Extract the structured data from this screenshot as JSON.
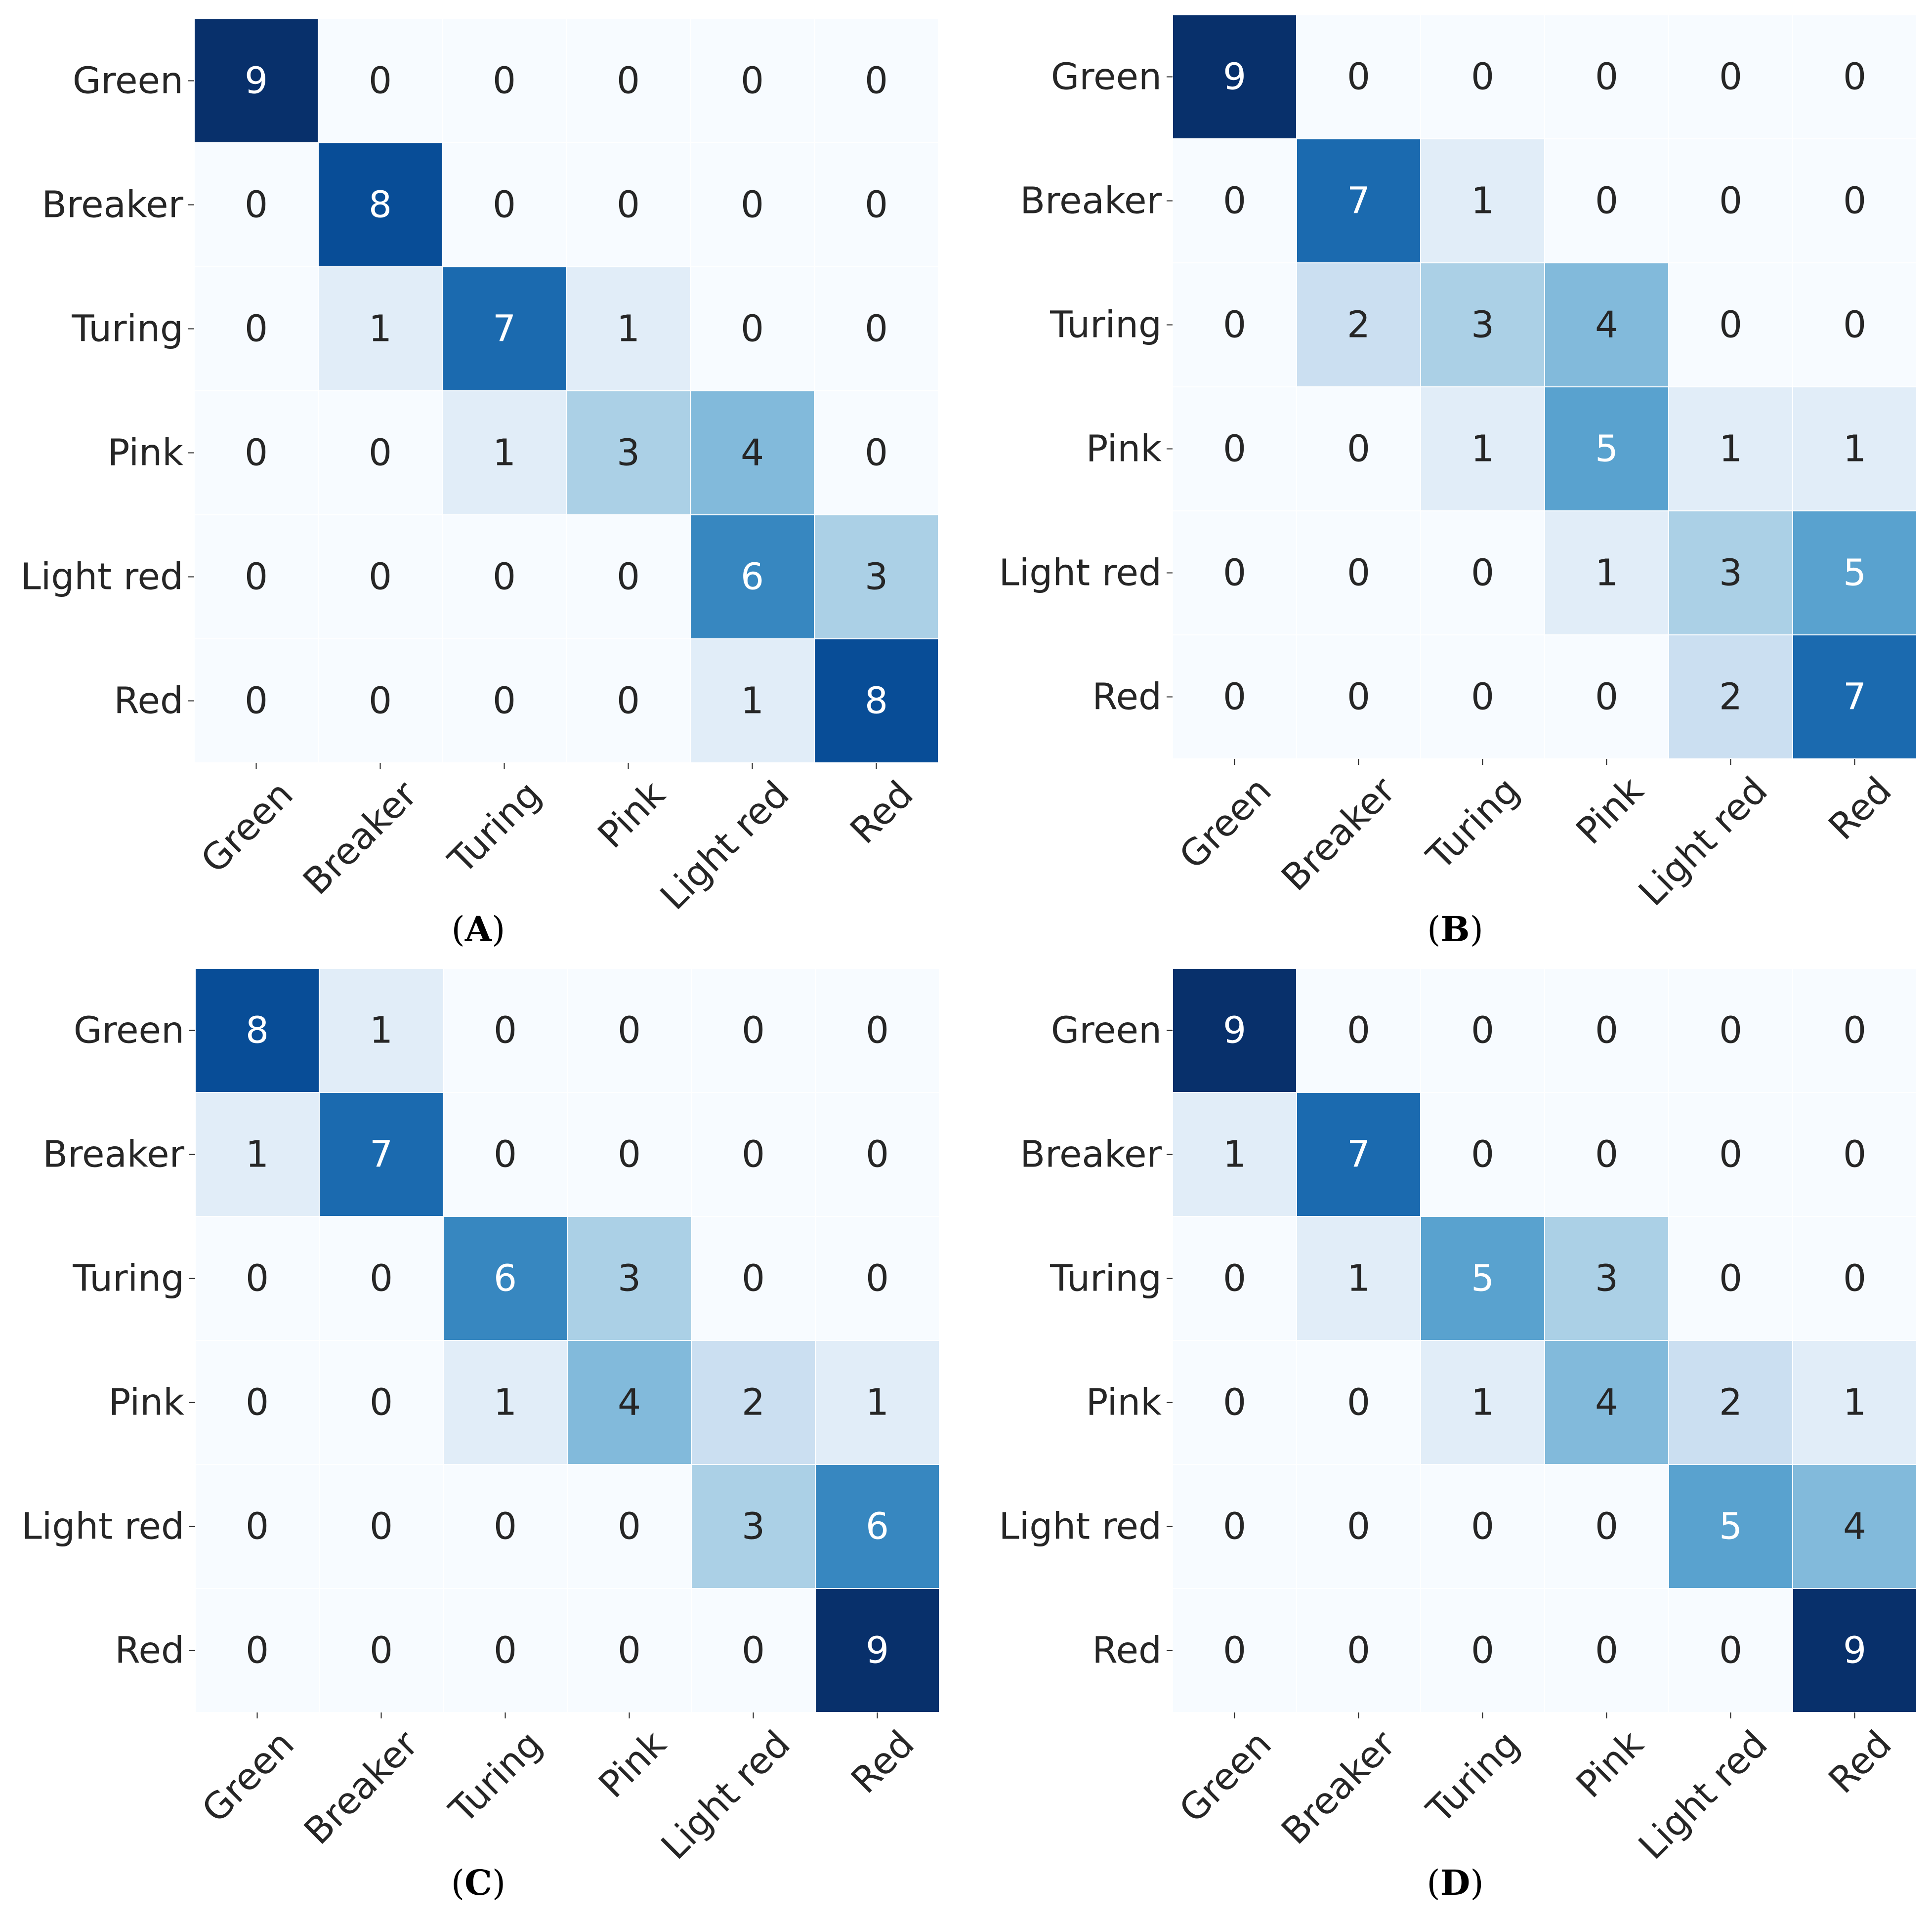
{
  "chart_data": [
    {
      "type": "heatmap",
      "panel": "A",
      "caption_letter": "A",
      "row_labels": [
        "Green",
        "Breaker",
        "Turing",
        "Pink",
        "Light red",
        "Red"
      ],
      "col_labels": [
        "Green",
        "Breaker",
        "Turing",
        "Pink",
        "Light red",
        "Red"
      ],
      "matrix": [
        [
          9,
          0,
          0,
          0,
          0,
          0
        ],
        [
          0,
          8,
          0,
          0,
          0,
          0
        ],
        [
          0,
          1,
          7,
          1,
          0,
          0
        ],
        [
          0,
          0,
          1,
          3,
          4,
          0
        ],
        [
          0,
          0,
          0,
          0,
          6,
          3
        ],
        [
          0,
          0,
          0,
          0,
          1,
          8
        ]
      ],
      "value_range": [
        0,
        9
      ],
      "colormap": "Blues"
    },
    {
      "type": "heatmap",
      "panel": "B",
      "caption_letter": "B",
      "row_labels": [
        "Green",
        "Breaker",
        "Turing",
        "Pink",
        "Light red",
        "Red"
      ],
      "col_labels": [
        "Green",
        "Breaker",
        "Turing",
        "Pink",
        "Light red",
        "Red"
      ],
      "matrix": [
        [
          9,
          0,
          0,
          0,
          0,
          0
        ],
        [
          0,
          7,
          1,
          0,
          0,
          0
        ],
        [
          0,
          2,
          3,
          4,
          0,
          0
        ],
        [
          0,
          0,
          1,
          5,
          1,
          1
        ],
        [
          0,
          0,
          0,
          1,
          3,
          5
        ],
        [
          0,
          0,
          0,
          0,
          2,
          7
        ]
      ],
      "value_range": [
        0,
        9
      ],
      "colormap": "Blues"
    },
    {
      "type": "heatmap",
      "panel": "C",
      "caption_letter": "C",
      "row_labels": [
        "Green",
        "Breaker",
        "Turing",
        "Pink",
        "Light red",
        "Red"
      ],
      "col_labels": [
        "Green",
        "Breaker",
        "Turing",
        "Pink",
        "Light red",
        "Red"
      ],
      "matrix": [
        [
          8,
          1,
          0,
          0,
          0,
          0
        ],
        [
          1,
          7,
          0,
          0,
          0,
          0
        ],
        [
          0,
          0,
          6,
          3,
          0,
          0
        ],
        [
          0,
          0,
          1,
          4,
          2,
          1
        ],
        [
          0,
          0,
          0,
          0,
          3,
          6
        ],
        [
          0,
          0,
          0,
          0,
          0,
          9
        ]
      ],
      "value_range": [
        0,
        9
      ],
      "colormap": "Blues"
    },
    {
      "type": "heatmap",
      "panel": "D",
      "caption_letter": "D",
      "row_labels": [
        "Green",
        "Breaker",
        "Turing",
        "Pink",
        "Light red",
        "Red"
      ],
      "col_labels": [
        "Green",
        "Breaker",
        "Turing",
        "Pink",
        "Light red",
        "Red"
      ],
      "matrix": [
        [
          9,
          0,
          0,
          0,
          0,
          0
        ],
        [
          1,
          7,
          0,
          0,
          0,
          0
        ],
        [
          0,
          1,
          5,
          3,
          0,
          0
        ],
        [
          0,
          0,
          1,
          4,
          2,
          1
        ],
        [
          0,
          0,
          0,
          0,
          5,
          4
        ],
        [
          0,
          0,
          0,
          0,
          0,
          9
        ]
      ],
      "value_range": [
        0,
        9
      ],
      "colormap": "Blues"
    }
  ],
  "colors": {
    "light_text": "#ffffff",
    "dark_text": "#262626",
    "cell_border": "#ffffff",
    "tick_color": "#262626",
    "blues_scale": [
      "#f7fbff",
      "#deebf7",
      "#c6dbef",
      "#9ecae1",
      "#6baed6",
      "#4292c6",
      "#2171b5",
      "#08519c",
      "#08306b"
    ]
  }
}
